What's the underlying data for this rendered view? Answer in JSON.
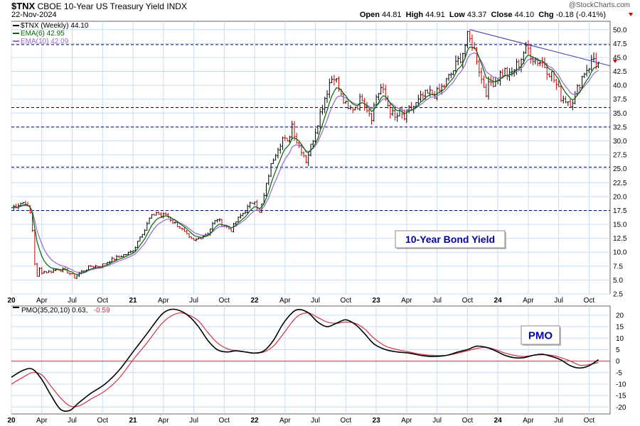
{
  "header": {
    "symbol": "$TNX",
    "name": "CBOE 10-Year US Treasury Yield",
    "exchange": "INDX",
    "date": "22-Nov-2024",
    "watermark": "@StockCharts.com",
    "open_label": "Open",
    "open": "44.81",
    "high_label": "High",
    "high": "44.91",
    "low_label": "Low",
    "low": "43.37",
    "close_label": "Close",
    "close": "44.10",
    "chg_label": "Chg",
    "chg": "-0.18 (-0.41%)"
  },
  "legend": {
    "price": "$TNX (Weekly) 44.10",
    "ema6": "EMA(6) 42.95",
    "ema10": "EMA(10) 42.09",
    "pmo_label": "PMO(35,20,10) 0.63,",
    "pmo_signal": "-0.59"
  },
  "annotations": {
    "price_box": "10-Year Bond Yield",
    "pmo_box": "PMO"
  },
  "colors": {
    "up_bar": "#000000",
    "down_bar": "#cc0000",
    "ema6": "#006600",
    "ema10": "#9966cc",
    "pmo": "#000000",
    "pmo_signal": "#cc3344",
    "trendline": "#3333aa",
    "hlines": "#000066",
    "grid": "#c9dcef",
    "annot_text": "#0000aa"
  },
  "chart_data": [
    {
      "type": "ohlc",
      "title": "$TNX (Weekly) 44.10",
      "interval": "weekly",
      "ylim": [
        2.5,
        51.5
      ],
      "yticks": [
        2.5,
        5.0,
        7.5,
        10.0,
        12.5,
        15.0,
        17.5,
        20.0,
        22.5,
        25.0,
        27.5,
        30.0,
        32.5,
        35.0,
        37.5,
        40.0,
        42.5,
        45.0,
        47.5,
        50.0
      ],
      "x_tick_labels": [
        "20",
        "Apr",
        "Jul",
        "Oct",
        "21",
        "Apr",
        "Jul",
        "Oct",
        "22",
        "Apr",
        "Jul",
        "Oct",
        "23",
        "Apr",
        "Jul",
        "Oct",
        "24",
        "Apr",
        "Jul",
        "Oct"
      ],
      "x_tick_weeks": [
        0,
        13,
        26,
        39,
        52,
        65,
        78,
        91,
        104,
        117,
        130,
        143,
        156,
        169,
        182,
        195,
        208,
        221,
        234,
        247
      ],
      "weeks_total": 256,
      "close_path": [
        [
          0,
          18.0
        ],
        [
          4,
          18.8
        ],
        [
          6,
          19.0
        ],
        [
          8,
          17.0
        ],
        [
          9,
          14.0
        ],
        [
          10,
          8.0
        ],
        [
          11,
          5.5
        ],
        [
          12,
          7.0
        ],
        [
          13,
          6.5
        ],
        [
          16,
          6.5
        ],
        [
          20,
          7.0
        ],
        [
          24,
          6.5
        ],
        [
          27,
          5.5
        ],
        [
          30,
          6.5
        ],
        [
          34,
          7.5
        ],
        [
          38,
          7.5
        ],
        [
          42,
          8.5
        ],
        [
          45,
          9.0
        ],
        [
          48,
          9.5
        ],
        [
          51,
          10.0
        ],
        [
          53,
          11.0
        ],
        [
          55,
          13.0
        ],
        [
          57,
          14.0
        ],
        [
          59,
          16.0
        ],
        [
          62,
          17.2
        ],
        [
          64,
          16.5
        ],
        [
          66,
          16.8
        ],
        [
          69,
          15.5
        ],
        [
          72,
          14.5
        ],
        [
          74,
          13.5
        ],
        [
          76,
          12.5
        ],
        [
          78,
          12.0
        ],
        [
          80,
          12.5
        ],
        [
          84,
          13.5
        ],
        [
          86,
          15.0
        ],
        [
          88,
          16.0
        ],
        [
          90,
          15.0
        ],
        [
          92,
          14.5
        ],
        [
          94,
          14.0
        ],
        [
          96,
          15.5
        ],
        [
          98,
          16.5
        ],
        [
          100,
          17.5
        ],
        [
          102,
          18.5
        ],
        [
          104,
          19.5
        ],
        [
          106,
          17.0
        ],
        [
          108,
          20.0
        ],
        [
          110,
          24.0
        ],
        [
          112,
          27.0
        ],
        [
          114,
          29.0
        ],
        [
          116,
          30.5
        ],
        [
          118,
          29.5
        ],
        [
          120,
          33.0
        ],
        [
          122,
          30.0
        ],
        [
          124,
          28.5
        ],
        [
          126,
          26.5
        ],
        [
          128,
          29.0
        ],
        [
          130,
          32.0
        ],
        [
          133,
          36.5
        ],
        [
          136,
          40.5
        ],
        [
          138,
          42.0
        ],
        [
          141,
          38.0
        ],
        [
          144,
          35.5
        ],
        [
          146,
          36.0
        ],
        [
          148,
          36.5
        ],
        [
          150,
          38.0
        ],
        [
          152,
          36.0
        ],
        [
          154,
          34.5
        ],
        [
          156,
          38.0
        ],
        [
          158,
          39.5
        ],
        [
          160,
          37.5
        ],
        [
          162,
          35.5
        ],
        [
          164,
          34.0
        ],
        [
          166,
          35.0
        ],
        [
          168,
          34.0
        ],
        [
          170,
          35.5
        ],
        [
          173,
          36.5
        ],
        [
          176,
          38.0
        ],
        [
          179,
          38.5
        ],
        [
          182,
          38.5
        ],
        [
          185,
          40.0
        ],
        [
          188,
          42.0
        ],
        [
          190,
          43.5
        ],
        [
          193,
          46.0
        ],
        [
          195,
          48.5
        ],
        [
          197,
          47.5
        ],
        [
          199,
          45.0
        ],
        [
          201,
          41.0
        ],
        [
          203,
          39.0
        ],
        [
          205,
          40.5
        ],
        [
          207,
          41.0
        ],
        [
          209,
          42.0
        ],
        [
          211,
          42.5
        ],
        [
          213,
          41.5
        ],
        [
          215,
          43.0
        ],
        [
          217,
          44.0
        ],
        [
          219,
          46.0
        ],
        [
          221,
          46.5
        ],
        [
          223,
          45.0
        ],
        [
          225,
          44.5
        ],
        [
          227,
          44.0
        ],
        [
          229,
          43.0
        ],
        [
          231,
          42.0
        ],
        [
          233,
          40.0
        ],
        [
          235,
          38.0
        ],
        [
          237,
          37.5
        ],
        [
          239,
          37.0
        ],
        [
          241,
          38.0
        ],
        [
          243,
          40.5
        ],
        [
          245,
          42.5
        ],
        [
          247,
          43.5
        ],
        [
          249,
          44.8
        ],
        [
          251,
          44.1
        ]
      ],
      "ema6_last": 42.95,
      "ema10_last": 42.09,
      "horizontal_lines": [
        47.3,
        36.0,
        32.5,
        25.3,
        17.5
      ],
      "trendline": [
        [
          196,
          50.0
        ],
        [
          256,
          43.5
        ]
      ]
    },
    {
      "type": "line",
      "title": "PMO(35,20,10) 0.63, -0.59",
      "ylim": [
        -23,
        24
      ],
      "yticks": [
        -20,
        -15,
        -10,
        -5,
        0,
        5,
        10,
        15,
        20
      ],
      "series": [
        {
          "name": "PMO(35,20,10)",
          "points": [
            [
              0,
              -7.0
            ],
            [
              5,
              -4.0
            ],
            [
              9,
              -3.5
            ],
            [
              13,
              -8.0
            ],
            [
              17,
              -15.0
            ],
            [
              21,
              -21.0
            ],
            [
              25,
              -21.5
            ],
            [
              29,
              -18.0
            ],
            [
              34,
              -14.0
            ],
            [
              40,
              -10.0
            ],
            [
              46,
              -4.0
            ],
            [
              52,
              4.0
            ],
            [
              58,
              12.0
            ],
            [
              64,
              20.0
            ],
            [
              68,
              22.5
            ],
            [
              72,
              22.0
            ],
            [
              76,
              19.5
            ],
            [
              80,
              15.0
            ],
            [
              84,
              9.0
            ],
            [
              88,
              5.0
            ],
            [
              92,
              4.0
            ],
            [
              96,
              4.5
            ],
            [
              100,
              4.0
            ],
            [
              104,
              3.5
            ],
            [
              108,
              4.5
            ],
            [
              112,
              9.0
            ],
            [
              116,
              16.0
            ],
            [
              120,
              21.0
            ],
            [
              123,
              22.5
            ],
            [
              127,
              21.0
            ],
            [
              131,
              17.0
            ],
            [
              135,
              15.0
            ],
            [
              139,
              16.5
            ],
            [
              143,
              18.0
            ],
            [
              147,
              16.0
            ],
            [
              151,
              12.0
            ],
            [
              155,
              7.5
            ],
            [
              160,
              5.0
            ],
            [
              165,
              4.0
            ],
            [
              170,
              3.5
            ],
            [
              175,
              2.5
            ],
            [
              180,
              2.0
            ],
            [
              186,
              2.5
            ],
            [
              191,
              4.0
            ],
            [
              195,
              5.0
            ],
            [
              199,
              6.5
            ],
            [
              203,
              6.0
            ],
            [
              207,
              4.5
            ],
            [
              211,
              2.5
            ],
            [
              215,
              1.5
            ],
            [
              219,
              1.5
            ],
            [
              223,
              2.5
            ],
            [
              227,
              3.0
            ],
            [
              231,
              2.0
            ],
            [
              235,
              0.5
            ],
            [
              239,
              -2.0
            ],
            [
              243,
              -3.0
            ],
            [
              247,
              -2.0
            ],
            [
              251,
              0.63
            ]
          ]
        },
        {
          "name": "signal",
          "points": [
            [
              0,
              -10.0
            ],
            [
              5,
              -7.0
            ],
            [
              9,
              -5.0
            ],
            [
              13,
              -6.0
            ],
            [
              17,
              -11.0
            ],
            [
              21,
              -16.0
            ],
            [
              25,
              -19.5
            ],
            [
              29,
              -19.5
            ],
            [
              34,
              -16.5
            ],
            [
              40,
              -13.0
            ],
            [
              46,
              -7.5
            ],
            [
              52,
              0.5
            ],
            [
              58,
              8.0
            ],
            [
              64,
              16.0
            ],
            [
              68,
              19.5
            ],
            [
              72,
              21.0
            ],
            [
              76,
              20.0
            ],
            [
              80,
              17.5
            ],
            [
              84,
              12.5
            ],
            [
              88,
              8.0
            ],
            [
              92,
              5.5
            ],
            [
              96,
              4.5
            ],
            [
              100,
              4.0
            ],
            [
              104,
              3.5
            ],
            [
              108,
              4.0
            ],
            [
              112,
              6.5
            ],
            [
              116,
              11.5
            ],
            [
              120,
              17.0
            ],
            [
              123,
              20.0
            ],
            [
              127,
              21.0
            ],
            [
              131,
              19.0
            ],
            [
              135,
              17.0
            ],
            [
              139,
              16.5
            ],
            [
              143,
              17.0
            ],
            [
              147,
              16.5
            ],
            [
              151,
              14.0
            ],
            [
              155,
              10.0
            ],
            [
              160,
              6.5
            ],
            [
              165,
              5.0
            ],
            [
              170,
              4.0
            ],
            [
              175,
              3.0
            ],
            [
              180,
              2.5
            ],
            [
              186,
              2.5
            ],
            [
              191,
              3.5
            ],
            [
              195,
              4.5
            ],
            [
              199,
              5.5
            ],
            [
              203,
              6.0
            ],
            [
              207,
              5.0
            ],
            [
              211,
              3.5
            ],
            [
              215,
              2.5
            ],
            [
              219,
              2.0
            ],
            [
              223,
              2.5
            ],
            [
              227,
              2.8
            ],
            [
              231,
              2.5
            ],
            [
              235,
              1.5
            ],
            [
              239,
              0.0
            ],
            [
              243,
              -1.8
            ],
            [
              247,
              -1.5
            ],
            [
              251,
              -0.59
            ]
          ]
        }
      ],
      "zero_line": 0
    }
  ]
}
